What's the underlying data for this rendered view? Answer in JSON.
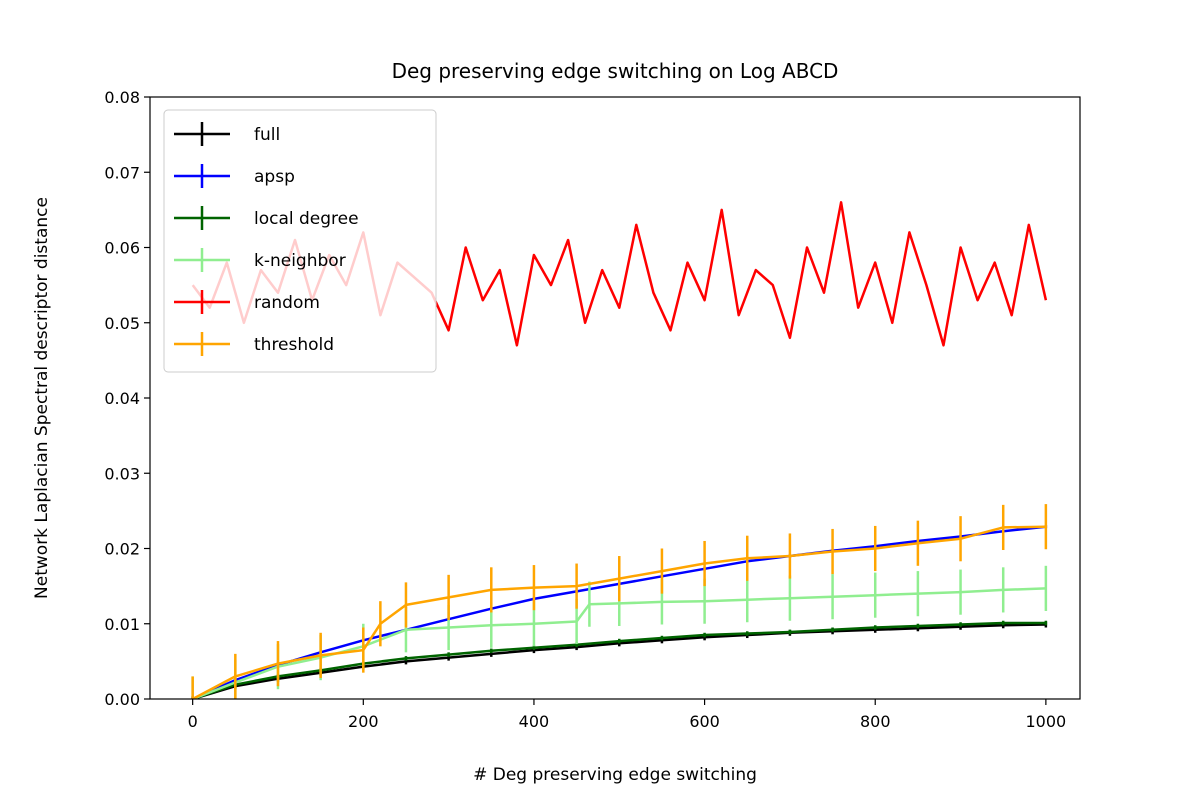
{
  "chart_data": {
    "type": "line",
    "title": "Deg preserving edge switching on Log ABCD",
    "xlabel": "# Deg preserving edge switching",
    "ylabel": "Network Laplacian Spectral descriptor distance",
    "xlim": [
      -50,
      1040
    ],
    "ylim": [
      0,
      0.08
    ],
    "x_ticks": [
      0,
      200,
      400,
      600,
      800,
      1000
    ],
    "x_tick_labels": [
      "0",
      "200",
      "400",
      "600",
      "800",
      "1000"
    ],
    "y_ticks": [
      0,
      0.01,
      0.02,
      0.03,
      0.04,
      0.05,
      0.06,
      0.07,
      0.08
    ],
    "y_tick_labels": [
      "0.00",
      "0.01",
      "0.02",
      "0.03",
      "0.04",
      "0.05",
      "0.06",
      "0.07",
      "0.08"
    ],
    "legend_position": "top-left",
    "grid": false,
    "series": [
      {
        "name": "full",
        "color": "#000000",
        "x": [
          0,
          50,
          100,
          150,
          200,
          250,
          300,
          350,
          400,
          450,
          500,
          550,
          600,
          650,
          700,
          750,
          800,
          850,
          900,
          950,
          1000
        ],
        "y": [
          0,
          0.0017,
          0.0027,
          0.0035,
          0.0043,
          0.005,
          0.0055,
          0.006,
          0.0065,
          0.0069,
          0.0074,
          0.0078,
          0.0082,
          0.0085,
          0.0088,
          0.009,
          0.0092,
          0.0094,
          0.0096,
          0.0098,
          0.0099
        ],
        "yerr": 0.0004
      },
      {
        "name": "apsp",
        "color": "#0000ff",
        "x": [
          0,
          50,
          100,
          150,
          200,
          250,
          300,
          350,
          400,
          450,
          500,
          550,
          600,
          650,
          700,
          750,
          800,
          850,
          900,
          950,
          1000
        ],
        "y": [
          0,
          0.0025,
          0.0045,
          0.0062,
          0.0078,
          0.0092,
          0.0106,
          0.012,
          0.0133,
          0.0143,
          0.0153,
          0.0163,
          0.0173,
          0.0183,
          0.019,
          0.0197,
          0.0203,
          0.021,
          0.0216,
          0.0223,
          0.0229
        ],
        "yerr": 0.0002
      },
      {
        "name": "local degree",
        "color": "#006400",
        "x": [
          0,
          50,
          100,
          150,
          200,
          250,
          300,
          350,
          400,
          450,
          500,
          550,
          600,
          650,
          700,
          750,
          800,
          850,
          900,
          950,
          1000
        ],
        "y": [
          0,
          0.0019,
          0.003,
          0.0038,
          0.0047,
          0.0054,
          0.0059,
          0.0064,
          0.0068,
          0.0072,
          0.0077,
          0.0081,
          0.0085,
          0.0087,
          0.0089,
          0.0092,
          0.0095,
          0.0097,
          0.0099,
          0.0101,
          0.0101
        ],
        "yerr": 0.0003
      },
      {
        "name": "k-neighbor",
        "color": "#90ee90",
        "x": [
          0,
          50,
          100,
          150,
          200,
          250,
          300,
          350,
          400,
          450,
          465,
          500,
          550,
          600,
          650,
          700,
          750,
          800,
          850,
          900,
          950,
          1000
        ],
        "y": [
          0,
          0.0022,
          0.0043,
          0.0055,
          0.007,
          0.0092,
          0.0095,
          0.0098,
          0.01,
          0.0103,
          0.0126,
          0.0127,
          0.0129,
          0.013,
          0.0132,
          0.0134,
          0.0136,
          0.0138,
          0.014,
          0.0142,
          0.0145,
          0.0147
        ],
        "yerr": 0.003
      },
      {
        "name": "random",
        "color": "#ff0000",
        "x": [
          0,
          20,
          40,
          60,
          80,
          100,
          120,
          140,
          160,
          180,
          200,
          220,
          240,
          260,
          280,
          300,
          320,
          340,
          360,
          380,
          400,
          420,
          440,
          460,
          480,
          500,
          520,
          540,
          560,
          580,
          600,
          620,
          640,
          660,
          680,
          700,
          720,
          740,
          760,
          780,
          800,
          820,
          840,
          860,
          880,
          900,
          920,
          940,
          960,
          980,
          1000
        ],
        "y": [
          0.055,
          0.052,
          0.058,
          0.05,
          0.057,
          0.054,
          0.061,
          0.053,
          0.059,
          0.055,
          0.062,
          0.051,
          0.058,
          0.056,
          0.054,
          0.049,
          0.06,
          0.053,
          0.057,
          0.047,
          0.059,
          0.055,
          0.061,
          0.05,
          0.057,
          0.052,
          0.063,
          0.054,
          0.049,
          0.058,
          0.053,
          0.065,
          0.051,
          0.057,
          0.055,
          0.048,
          0.06,
          0.054,
          0.066,
          0.052,
          0.058,
          0.05,
          0.062,
          0.055,
          0.047,
          0.06,
          0.053,
          0.058,
          0.051,
          0.063,
          0.053
        ],
        "yerr": 0
      },
      {
        "name": "threshold",
        "color": "#ffa500",
        "x": [
          0,
          50,
          100,
          150,
          200,
          220,
          250,
          300,
          350,
          400,
          450,
          500,
          550,
          600,
          650,
          700,
          750,
          800,
          850,
          900,
          950,
          1000
        ],
        "y": [
          0,
          0.003,
          0.0047,
          0.0058,
          0.0065,
          0.01,
          0.0125,
          0.0135,
          0.0145,
          0.0148,
          0.015,
          0.016,
          0.017,
          0.018,
          0.0187,
          0.019,
          0.0196,
          0.02,
          0.0207,
          0.0213,
          0.0228,
          0.0229
        ],
        "yerr": 0.003
      }
    ]
  }
}
